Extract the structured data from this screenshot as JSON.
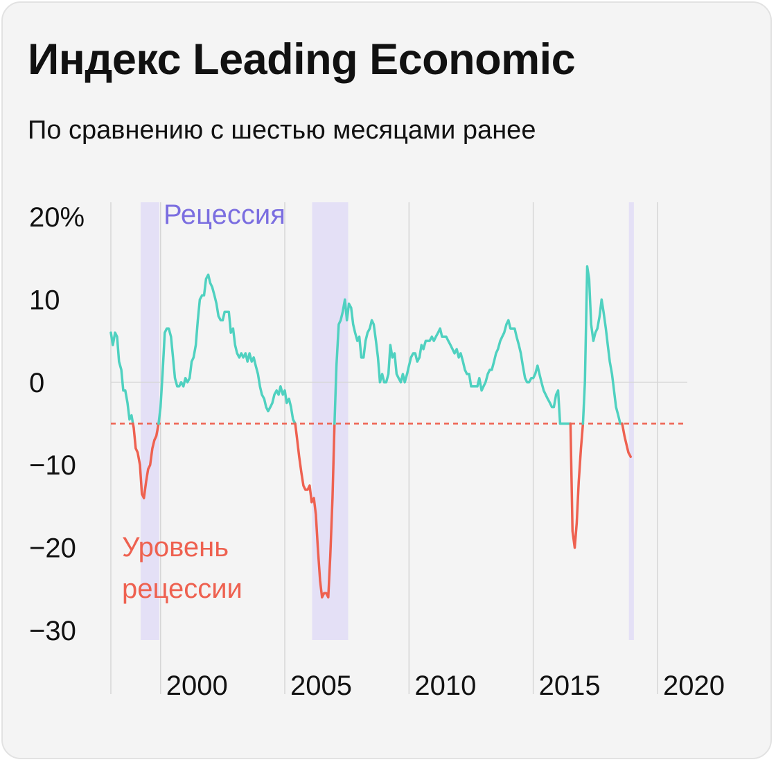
{
  "title": "Индекс Leading Economic",
  "subtitle": "По сравнению с шестью месяцами ранее",
  "colors": {
    "background": "#f4f4f4",
    "line_above": "#4fd1c0",
    "line_below": "#ee6150",
    "threshold": "#ee6150",
    "recession_band": "#e4e0f6",
    "recession_label": "#7b6ee0",
    "grid": "#d6d6d6"
  },
  "chart_data": {
    "type": "line",
    "ylim": [
      -30,
      20
    ],
    "xlim": [
      1998.0,
      2021.2
    ],
    "y_ticks": [
      {
        "value": 20,
        "label": "20%"
      },
      {
        "value": 10,
        "label": "10"
      },
      {
        "value": 0,
        "label": "0"
      },
      {
        "value": -10,
        "label": "−10"
      },
      {
        "value": -20,
        "label": "−20"
      },
      {
        "value": -30,
        "label": "−30"
      }
    ],
    "x_ticks": [
      {
        "value": 2000,
        "label": "2000"
      },
      {
        "value": 2005,
        "label": "2005"
      },
      {
        "value": 2010,
        "label": "2010"
      },
      {
        "value": 2015,
        "label": "2015"
      },
      {
        "value": 2020,
        "label": "2020"
      }
    ],
    "threshold": {
      "value": -5,
      "label_lines": [
        "Уровень",
        "рецессии"
      ]
    },
    "recessions": {
      "label": "Рецессия",
      "periods": [
        [
          1999.2,
          1999.95
        ],
        [
          2006.1,
          2007.55
        ],
        [
          2018.85,
          2019.05
        ]
      ]
    },
    "series": [
      {
        "points": [
          [
            1998.0,
            6.0
          ],
          [
            1998.08,
            4.5
          ],
          [
            1998.17,
            6.0
          ],
          [
            1998.25,
            5.5
          ],
          [
            1998.33,
            2.5
          ],
          [
            1998.42,
            1.5
          ],
          [
            1998.5,
            -1.0
          ],
          [
            1998.58,
            -1.0
          ],
          [
            1998.67,
            -2.5
          ],
          [
            1998.75,
            -4.5
          ],
          [
            1998.83,
            -4.0
          ],
          [
            1998.92,
            -5.5
          ],
          [
            1999.0,
            -8.0
          ],
          [
            1999.08,
            -8.5
          ],
          [
            1999.17,
            -10.0
          ],
          [
            1999.25,
            -13.5
          ],
          [
            1999.33,
            -14.0
          ],
          [
            1999.42,
            -12.0
          ],
          [
            1999.5,
            -10.5
          ],
          [
            1999.58,
            -10.0
          ],
          [
            1999.67,
            -8.0
          ],
          [
            1999.75,
            -7.0
          ],
          [
            1999.83,
            -6.5
          ],
          [
            1999.92,
            -5.0
          ],
          [
            2000.0,
            -3.0
          ],
          [
            2000.08,
            1.0
          ],
          [
            2000.17,
            6.0
          ],
          [
            2000.25,
            6.5
          ],
          [
            2000.33,
            6.5
          ],
          [
            2000.42,
            5.5
          ],
          [
            2000.5,
            3.0
          ],
          [
            2000.58,
            0.5
          ],
          [
            2000.67,
            -0.5
          ],
          [
            2000.75,
            -0.5
          ],
          [
            2000.83,
            0.0
          ],
          [
            2000.92,
            -0.5
          ],
          [
            2001.0,
            0.5
          ],
          [
            2001.08,
            0.0
          ],
          [
            2001.17,
            0.5
          ],
          [
            2001.25,
            2.5
          ],
          [
            2001.33,
            3.0
          ],
          [
            2001.42,
            4.5
          ],
          [
            2001.5,
            7.5
          ],
          [
            2001.58,
            10.0
          ],
          [
            2001.67,
            10.5
          ],
          [
            2001.75,
            10.5
          ],
          [
            2001.83,
            12.5
          ],
          [
            2001.92,
            13.0
          ],
          [
            2002.0,
            12.0
          ],
          [
            2002.08,
            11.5
          ],
          [
            2002.17,
            10.5
          ],
          [
            2002.25,
            9.5
          ],
          [
            2002.33,
            8.0
          ],
          [
            2002.42,
            7.5
          ],
          [
            2002.5,
            7.5
          ],
          [
            2002.58,
            8.5
          ],
          [
            2002.67,
            8.5
          ],
          [
            2002.75,
            8.5
          ],
          [
            2002.83,
            6.0
          ],
          [
            2002.92,
            6.5
          ],
          [
            2003.0,
            4.5
          ],
          [
            2003.08,
            3.5
          ],
          [
            2003.17,
            3.0
          ],
          [
            2003.25,
            3.5
          ],
          [
            2003.33,
            3.0
          ],
          [
            2003.42,
            3.5
          ],
          [
            2003.5,
            2.5
          ],
          [
            2003.58,
            3.5
          ],
          [
            2003.67,
            2.5
          ],
          [
            2003.75,
            3.0
          ],
          [
            2003.83,
            2.0
          ],
          [
            2003.92,
            1.0
          ],
          [
            2004.0,
            -0.5
          ],
          [
            2004.08,
            -1.5
          ],
          [
            2004.17,
            -2.0
          ],
          [
            2004.25,
            -3.0
          ],
          [
            2004.33,
            -3.5
          ],
          [
            2004.42,
            -3.0
          ],
          [
            2004.5,
            -2.5
          ],
          [
            2004.58,
            -1.5
          ],
          [
            2004.67,
            -1.0
          ],
          [
            2004.75,
            -1.5
          ],
          [
            2004.83,
            -0.5
          ],
          [
            2004.92,
            -1.5
          ],
          [
            2005.0,
            -1.0
          ],
          [
            2005.08,
            -2.5
          ],
          [
            2005.17,
            -2.0
          ],
          [
            2005.25,
            -3.0
          ],
          [
            2005.33,
            -4.5
          ],
          [
            2005.42,
            -5.0
          ],
          [
            2005.5,
            -7.0
          ],
          [
            2005.58,
            -9.0
          ],
          [
            2005.67,
            -11.0
          ],
          [
            2005.75,
            -12.5
          ],
          [
            2005.83,
            -13.0
          ],
          [
            2005.92,
            -13.0
          ],
          [
            2006.0,
            -12.5
          ],
          [
            2006.08,
            -14.5
          ],
          [
            2006.17,
            -14.0
          ],
          [
            2006.25,
            -16.0
          ],
          [
            2006.33,
            -20.0
          ],
          [
            2006.42,
            -24.0
          ],
          [
            2006.5,
            -26.0
          ],
          [
            2006.58,
            -25.5
          ],
          [
            2006.67,
            -25.5
          ],
          [
            2006.75,
            -26.0
          ],
          [
            2006.83,
            -21.0
          ],
          [
            2006.92,
            -14.0
          ],
          [
            2007.0,
            -5.0
          ],
          [
            2007.08,
            2.0
          ],
          [
            2007.17,
            7.0
          ],
          [
            2007.25,
            7.5
          ],
          [
            2007.33,
            8.5
          ],
          [
            2007.42,
            10.0
          ],
          [
            2007.5,
            7.5
          ],
          [
            2007.58,
            9.5
          ],
          [
            2007.67,
            9.0
          ],
          [
            2007.75,
            7.0
          ],
          [
            2007.83,
            6.0
          ],
          [
            2007.92,
            5.0
          ],
          [
            2008.0,
            5.5
          ],
          [
            2008.08,
            3.0
          ],
          [
            2008.17,
            3.0
          ],
          [
            2008.25,
            5.0
          ],
          [
            2008.33,
            6.0
          ],
          [
            2008.42,
            6.5
          ],
          [
            2008.5,
            7.5
          ],
          [
            2008.58,
            7.0
          ],
          [
            2008.67,
            5.0
          ],
          [
            2008.75,
            3.0
          ],
          [
            2008.83,
            0.0
          ],
          [
            2008.92,
            1.0
          ],
          [
            2009.0,
            0.0
          ],
          [
            2009.08,
            0.0
          ],
          [
            2009.17,
            1.0
          ],
          [
            2009.25,
            4.5
          ],
          [
            2009.33,
            3.0
          ],
          [
            2009.42,
            3.5
          ],
          [
            2009.5,
            1.0
          ],
          [
            2009.58,
            0.5
          ],
          [
            2009.67,
            0.0
          ],
          [
            2009.75,
            1.0
          ],
          [
            2009.83,
            0.0
          ],
          [
            2009.92,
            1.0
          ],
          [
            2010.0,
            2.0
          ],
          [
            2010.08,
            3.0
          ],
          [
            2010.17,
            3.5
          ],
          [
            2010.25,
            3.5
          ],
          [
            2010.33,
            2.5
          ],
          [
            2010.42,
            3.0
          ],
          [
            2010.5,
            4.5
          ],
          [
            2010.58,
            4.0
          ],
          [
            2010.67,
            5.0
          ],
          [
            2010.75,
            5.0
          ],
          [
            2010.83,
            5.0
          ],
          [
            2010.92,
            5.5
          ],
          [
            2011.0,
            5.0
          ],
          [
            2011.08,
            5.5
          ],
          [
            2011.17,
            6.0
          ],
          [
            2011.25,
            6.5
          ],
          [
            2011.33,
            5.5
          ],
          [
            2011.42,
            5.5
          ],
          [
            2011.5,
            5.5
          ],
          [
            2011.58,
            5.0
          ],
          [
            2011.67,
            4.5
          ],
          [
            2011.75,
            4.0
          ],
          [
            2011.83,
            3.5
          ],
          [
            2011.92,
            4.0
          ],
          [
            2012.0,
            3.0
          ],
          [
            2012.08,
            3.5
          ],
          [
            2012.17,
            2.5
          ],
          [
            2012.25,
            1.5
          ],
          [
            2012.33,
            1.0
          ],
          [
            2012.42,
            1.0
          ],
          [
            2012.5,
            -0.5
          ],
          [
            2012.58,
            -0.5
          ],
          [
            2012.67,
            -0.5
          ],
          [
            2012.75,
            -0.5
          ],
          [
            2012.83,
            0.5
          ],
          [
            2012.92,
            -1.0
          ],
          [
            2013.0,
            -0.5
          ],
          [
            2013.08,
            0.0
          ],
          [
            2013.17,
            1.0
          ],
          [
            2013.25,
            1.5
          ],
          [
            2013.33,
            1.5
          ],
          [
            2013.42,
            2.5
          ],
          [
            2013.5,
            3.5
          ],
          [
            2013.58,
            4.0
          ],
          [
            2013.67,
            5.0
          ],
          [
            2013.75,
            5.5
          ],
          [
            2013.83,
            6.0
          ],
          [
            2013.92,
            7.0
          ],
          [
            2014.0,
            7.5
          ],
          [
            2014.08,
            6.5
          ],
          [
            2014.17,
            6.5
          ],
          [
            2014.25,
            6.5
          ],
          [
            2014.33,
            5.5
          ],
          [
            2014.42,
            4.5
          ],
          [
            2014.5,
            3.5
          ],
          [
            2014.58,
            2.0
          ],
          [
            2014.67,
            0.5
          ],
          [
            2014.75,
            0.0
          ],
          [
            2014.83,
            0.0
          ],
          [
            2014.92,
            0.5
          ],
          [
            2015.0,
            0.5
          ],
          [
            2015.08,
            1.0
          ],
          [
            2015.17,
            2.0
          ],
          [
            2015.25,
            1.0
          ],
          [
            2015.33,
            0.0
          ],
          [
            2015.42,
            -1.0
          ],
          [
            2015.5,
            -1.5
          ],
          [
            2015.58,
            -2.0
          ],
          [
            2015.67,
            -2.5
          ],
          [
            2015.75,
            -3.0
          ],
          [
            2015.83,
            -3.0
          ],
          [
            2015.92,
            -1.5
          ],
          [
            2016.0,
            -1.0
          ],
          [
            2016.08,
            -5.0
          ],
          [
            2016.17,
            -5.0
          ],
          [
            2016.25,
            -5.0
          ],
          [
            2016.33,
            -5.0
          ],
          [
            2016.42,
            -5.0
          ],
          [
            2016.5,
            -5.0
          ],
          [
            2016.58,
            -18.0
          ],
          [
            2016.67,
            -20.0
          ],
          [
            2016.75,
            -17.0
          ],
          [
            2016.83,
            -12.0
          ],
          [
            2016.92,
            -8.0
          ],
          [
            2017.0,
            -5.0
          ],
          [
            2017.08,
            0.0
          ],
          [
            2017.17,
            14.0
          ],
          [
            2017.25,
            12.5
          ],
          [
            2017.33,
            7.0
          ],
          [
            2017.42,
            5.0
          ],
          [
            2017.5,
            6.0
          ],
          [
            2017.58,
            6.5
          ],
          [
            2017.67,
            8.0
          ],
          [
            2017.75,
            10.0
          ],
          [
            2017.83,
            8.5
          ],
          [
            2017.92,
            6.5
          ],
          [
            2018.0,
            4.5
          ],
          [
            2018.08,
            2.5
          ],
          [
            2018.17,
            1.0
          ],
          [
            2018.25,
            -1.0
          ],
          [
            2018.33,
            -3.0
          ],
          [
            2018.42,
            -4.0
          ],
          [
            2018.5,
            -5.0
          ],
          [
            2018.58,
            -5.0
          ],
          [
            2018.67,
            -6.5
          ],
          [
            2018.75,
            -7.5
          ],
          [
            2018.83,
            -8.5
          ],
          [
            2018.92,
            -9.0
          ]
        ]
      }
    ]
  }
}
